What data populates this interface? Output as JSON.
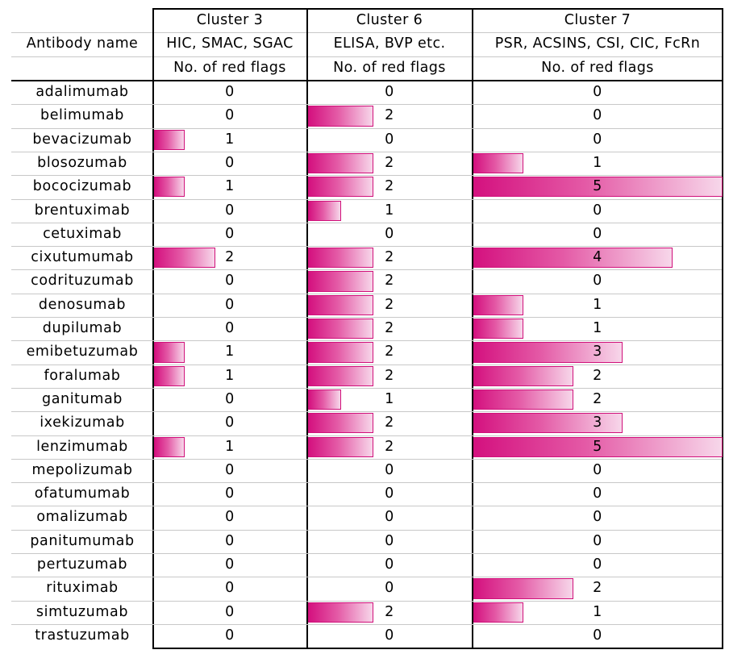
{
  "chart_data": {
    "type": "table",
    "header": {
      "name_col": "Antibody name",
      "groups": [
        {
          "title": "Cluster 3",
          "assays": "HIC, SMAC, SGAC",
          "metric": "No. of red flags",
          "max": 5
        },
        {
          "title": "Cluster 6",
          "assays": "ELISA, BVP etc.",
          "metric": "No. of red flags",
          "max": 5
        },
        {
          "title": "Cluster 7",
          "assays": "PSR, ACSINS, CSI, CIC, FcRn",
          "metric": "No. of red flags",
          "max": 5
        }
      ]
    },
    "rows": [
      {
        "name": "adalimumab",
        "values": [
          0,
          0,
          0
        ]
      },
      {
        "name": "belimumab",
        "values": [
          0,
          2,
          0
        ]
      },
      {
        "name": "bevacizumab",
        "values": [
          1,
          0,
          0
        ]
      },
      {
        "name": "blosozumab",
        "values": [
          0,
          2,
          1
        ]
      },
      {
        "name": "bococizumab",
        "values": [
          1,
          2,
          5
        ]
      },
      {
        "name": "brentuximab",
        "values": [
          0,
          1,
          0
        ]
      },
      {
        "name": "cetuximab",
        "values": [
          0,
          0,
          0
        ]
      },
      {
        "name": "cixutumumab",
        "values": [
          2,
          2,
          4
        ]
      },
      {
        "name": "codrituzumab",
        "values": [
          0,
          2,
          0
        ]
      },
      {
        "name": "denosumab",
        "values": [
          0,
          2,
          1
        ]
      },
      {
        "name": "dupilumab",
        "values": [
          0,
          2,
          1
        ]
      },
      {
        "name": "emibetuzumab",
        "values": [
          1,
          2,
          3
        ]
      },
      {
        "name": "foralumab",
        "values": [
          1,
          2,
          2
        ]
      },
      {
        "name": "ganitumab",
        "values": [
          0,
          1,
          2
        ]
      },
      {
        "name": "ixekizumab",
        "values": [
          0,
          2,
          3
        ]
      },
      {
        "name": "lenzimumab",
        "values": [
          1,
          2,
          5
        ]
      },
      {
        "name": "mepolizumab",
        "values": [
          0,
          0,
          0
        ]
      },
      {
        "name": "ofatumumab",
        "values": [
          0,
          0,
          0
        ]
      },
      {
        "name": "omalizumab",
        "values": [
          0,
          0,
          0
        ]
      },
      {
        "name": "panitumumab",
        "values": [
          0,
          0,
          0
        ]
      },
      {
        "name": "pertuzumab",
        "values": [
          0,
          0,
          0
        ]
      },
      {
        "name": "rituximab",
        "values": [
          0,
          0,
          2
        ]
      },
      {
        "name": "simtuzumab",
        "values": [
          0,
          2,
          1
        ]
      },
      {
        "name": "trastuzumab",
        "values": [
          0,
          0,
          0
        ]
      }
    ]
  },
  "colors": {
    "bar_dark": "#d4117f",
    "bar_light": "#f7d7ea",
    "bar_border": "#d0107a",
    "row_divider": "#c8c8c8",
    "grid": "#000000"
  }
}
